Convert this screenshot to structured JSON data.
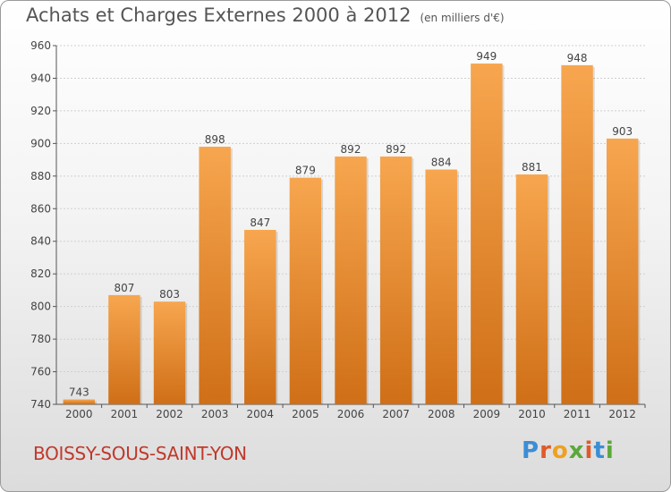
{
  "title": "Achats et Charges Externes 2000 à 2012",
  "unit": "(en milliers d'€)",
  "city": "BOISSY-SOUS-SAINT-YON",
  "logo": {
    "letters": [
      {
        "char": "P",
        "color": "#3a8ed6"
      },
      {
        "char": "r",
        "color": "#e05a28"
      },
      {
        "char": "o",
        "color": "#f0a020"
      },
      {
        "char": "x",
        "color": "#5aa83a"
      },
      {
        "char": "i",
        "color": "#e05a28"
      },
      {
        "char": "t",
        "color": "#3a8ed6"
      },
      {
        "char": "i",
        "color": "#5aa83a"
      }
    ]
  },
  "colors": {
    "bar_light": "#f7a64f",
    "bar_dark": "#cf6f17",
    "axis": "#555555",
    "grid": "#cfcfcf"
  },
  "chart_data": {
    "type": "bar",
    "title": "Achats et Charges Externes 2000 à 2012",
    "xlabel": "",
    "ylabel": "",
    "ylim": [
      740,
      960
    ],
    "yticks": [
      740,
      760,
      780,
      800,
      820,
      840,
      860,
      880,
      900,
      920,
      940,
      960
    ],
    "categories": [
      "2000",
      "2001",
      "2002",
      "2003",
      "2004",
      "2005",
      "2006",
      "2007",
      "2008",
      "2009",
      "2010",
      "2011",
      "2012"
    ],
    "values": [
      743,
      807,
      803,
      898,
      847,
      879,
      892,
      892,
      884,
      949,
      881,
      948,
      903
    ]
  }
}
